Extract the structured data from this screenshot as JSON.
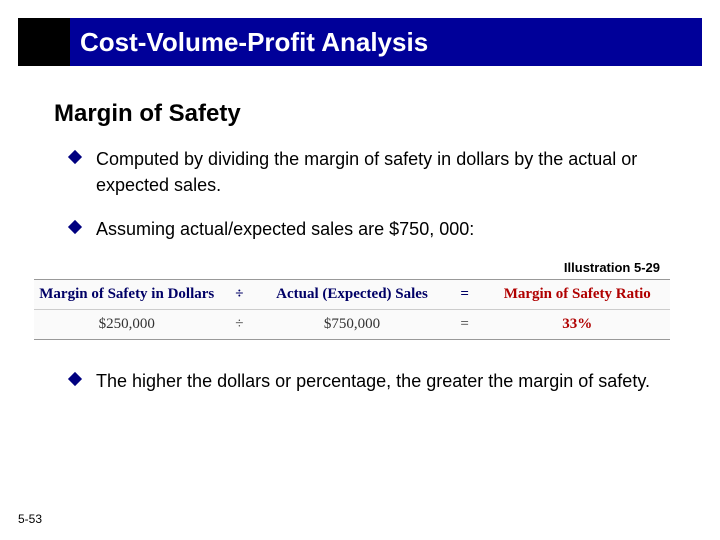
{
  "title": "Cost-Volume-Profit Analysis",
  "section_heading": "Margin of Safety",
  "bullets": {
    "b1": "Computed by dividing the margin of safety in dollars by the actual or expected sales.",
    "b2": "Assuming actual/expected sales are $750, 000:",
    "b3": "The higher the dollars or percentage, the greater the margin of safety."
  },
  "illustration_label": "Illustration 5-29",
  "formula": {
    "headers": {
      "c1": "Margin of Safety in Dollars",
      "c2": "Actual (Expected) Sales",
      "c3": "Margin of Safety Ratio"
    },
    "ops": {
      "div": "÷",
      "eq": "="
    },
    "values": {
      "v1": "$250,000",
      "v2": "$750,000",
      "v3": "33%"
    }
  },
  "page_number": "5-53",
  "colors": {
    "title_bg": "#000099",
    "bullet_marker": "#000080",
    "result_header": "#b00000",
    "result_value": "#b00000"
  }
}
